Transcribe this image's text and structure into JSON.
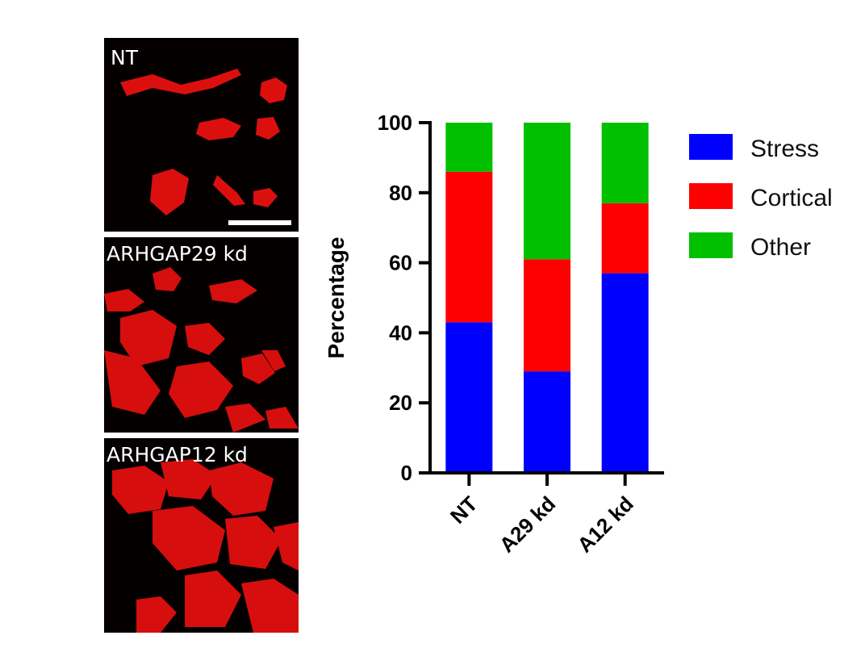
{
  "panels": [
    {
      "id": "nt",
      "label": "NT"
    },
    {
      "id": "a29",
      "label": "ARHGAP29 kd"
    },
    {
      "id": "a12",
      "label": "ARHGAP12 kd"
    }
  ],
  "colors": {
    "stress": "#0000ff",
    "cortical": "#ff0000",
    "other": "#00c000",
    "cells": "#e81010",
    "panel_bg": "#050000"
  },
  "chart_data": {
    "type": "bar",
    "stacked": true,
    "categories": [
      "NT",
      "A29 kd",
      "A12 kd"
    ],
    "series": [
      {
        "name": "Stress",
        "values": [
          43,
          29,
          57
        ],
        "color": "#0000ff"
      },
      {
        "name": "Cortical",
        "values": [
          43,
          32,
          20
        ],
        "color": "#ff0000"
      },
      {
        "name": "Other",
        "values": [
          14,
          39,
          23
        ],
        "color": "#00c000"
      }
    ],
    "ylabel": "Percentage",
    "xlabel": "",
    "ylim": [
      0,
      100
    ],
    "yticks": [
      "0",
      "20",
      "40",
      "60",
      "80",
      "100"
    ],
    "legend": "right",
    "grid": false
  }
}
